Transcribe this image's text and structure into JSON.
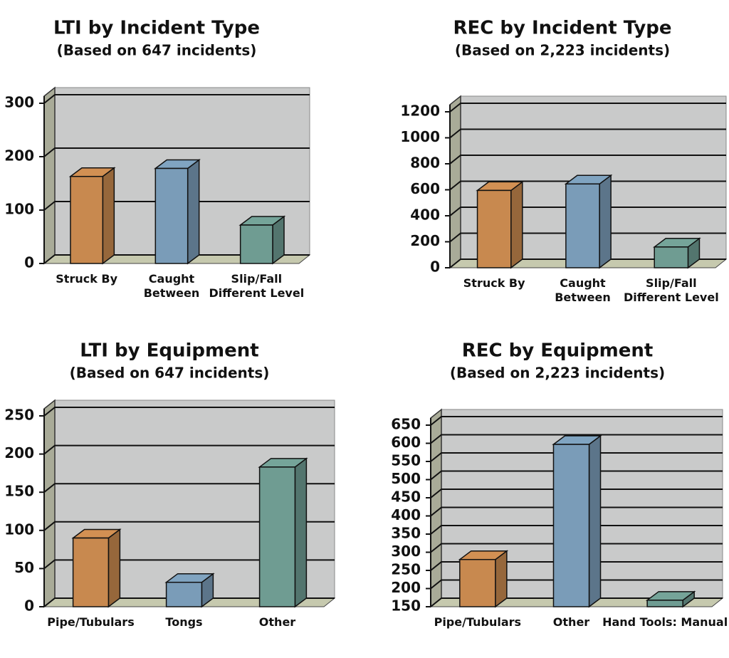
{
  "chart_data": [
    {
      "type": "bar3d",
      "title": "LTI by Incident Type",
      "subtitle": "(Based on 647 incidents)",
      "categories": [
        "Struck By",
        "Caught\nBetween",
        "Slip/Fall\nDifferent Level"
      ],
      "values": [
        163,
        178,
        72
      ],
      "colors": [
        "#c8894f",
        "#7a9cb8",
        "#6f9c92"
      ],
      "ylim": [
        0,
        300
      ],
      "yticks": [
        0,
        100,
        200,
        300
      ],
      "grid": true
    },
    {
      "type": "bar3d",
      "title": "REC by Incident Type",
      "subtitle": "(Based on 2,223 incidents)",
      "categories": [
        "Struck By",
        "Caught\nBetween",
        "Slip/Fall\nDifferent Level"
      ],
      "values": [
        595,
        645,
        160
      ],
      "colors": [
        "#c8894f",
        "#7a9cb8",
        "#6f9c92"
      ],
      "ylim": [
        0,
        1200
      ],
      "yticks": [
        0,
        200,
        400,
        600,
        800,
        1000,
        1200
      ],
      "grid": true
    },
    {
      "type": "bar3d",
      "title": "LTI by Equipment",
      "subtitle": "(Based on 647 incidents)",
      "categories": [
        "Pipe/Tubulars",
        "Tongs",
        "Other"
      ],
      "values": [
        90,
        32,
        183
      ],
      "colors": [
        "#c8894f",
        "#7a9cb8",
        "#6f9c92"
      ],
      "ylim": [
        0,
        250
      ],
      "yticks": [
        0,
        50,
        100,
        150,
        200,
        250
      ],
      "grid": true
    },
    {
      "type": "bar3d",
      "title": "REC by Equipment",
      "subtitle": "(Based on 2,223 incidents)",
      "categories": [
        "Pipe/Tubulars",
        "Other",
        "Hand Tools: Manual"
      ],
      "values": [
        280,
        597,
        168
      ],
      "colors": [
        "#c8894f",
        "#7a9cb8",
        "#6f9c92"
      ],
      "ylim": [
        150,
        650
      ],
      "yticks": [
        150,
        200,
        250,
        300,
        350,
        400,
        450,
        500,
        550,
        600,
        650
      ],
      "grid": true
    }
  ]
}
